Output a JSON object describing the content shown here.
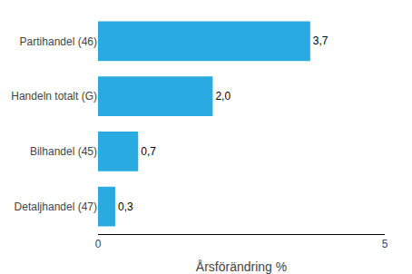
{
  "chart_data": {
    "type": "bar",
    "orientation": "horizontal",
    "categories": [
      "Detaljhandel (47)",
      "Bilhandel (45)",
      "Handeln totalt (G)",
      "Partihandel (46)"
    ],
    "values": [
      0.3,
      0.7,
      2.0,
      3.7
    ],
    "value_labels": [
      "0,3",
      "0,7",
      "2,0",
      "3,7"
    ],
    "color": "#29ABE2",
    "xlabel": "Årsförändring %",
    "xlim": [
      0,
      5
    ],
    "xticks": [
      0,
      5
    ],
    "grid": false
  }
}
